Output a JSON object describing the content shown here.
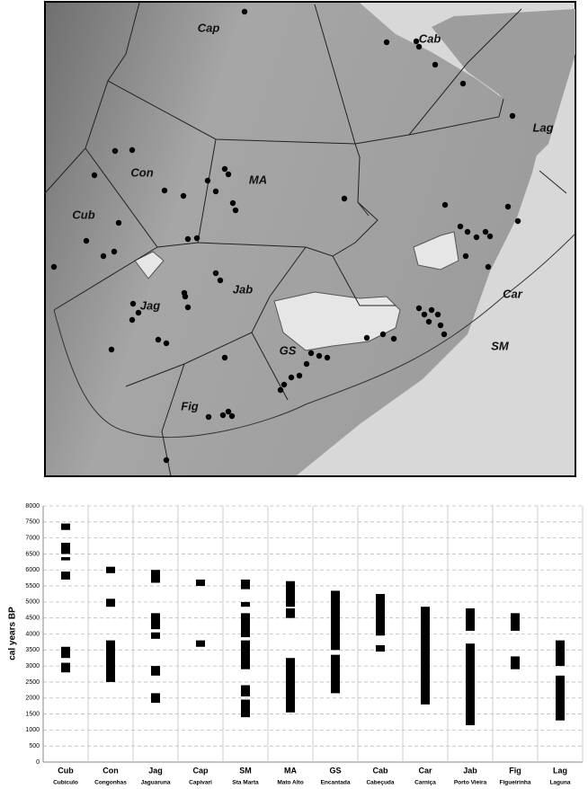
{
  "map": {
    "labels": [
      "Cap",
      "Cab",
      "Lag",
      "Con",
      "MA",
      "Cub",
      "Car",
      "Jab",
      "Jag",
      "GS",
      "SM",
      "Fig"
    ]
  },
  "chart_data": {
    "type": "range-bar",
    "y_label": "cal years BP",
    "categories": [
      "Cub",
      "Con",
      "Jag",
      "Cap",
      "SM",
      "MA",
      "GS",
      "Cab",
      "Car",
      "Jab",
      "Fig",
      "Lag"
    ],
    "category_names": [
      "Cubículo",
      "Congonhas",
      "Jaguaruna",
      "Capivari",
      "Sta Marta",
      "Mato Alto",
      "Encantada",
      "Cabeçuda",
      "Carniça",
      "Porto Vieira",
      "Figueirinha",
      "Laguna"
    ],
    "ranges": [
      [
        [
          7250,
          7450
        ],
        [
          6500,
          6850
        ],
        [
          6300,
          6400
        ],
        [
          5700,
          5950
        ],
        [
          3250,
          3600
        ],
        [
          2800,
          3100
        ]
      ],
      [
        [
          5900,
          6100
        ],
        [
          4850,
          5100
        ],
        [
          2500,
          3800
        ]
      ],
      [
        [
          5600,
          6000
        ],
        [
          4150,
          4650
        ],
        [
          3850,
          4050
        ],
        [
          2700,
          3000
        ],
        [
          1850,
          2150
        ]
      ],
      [
        [
          5500,
          5700
        ],
        [
          3600,
          3800
        ]
      ],
      [
        [
          5400,
          5700
        ],
        [
          4850,
          5000
        ],
        [
          3900,
          4650
        ],
        [
          2900,
          3800
        ],
        [
          2050,
          2400
        ],
        [
          1400,
          1950
        ]
      ],
      [
        [
          4850,
          5650
        ],
        [
          4500,
          4800
        ],
        [
          1550,
          3250
        ]
      ],
      [
        [
          3500,
          5350
        ],
        [
          2150,
          3350
        ]
      ],
      [
        [
          3950,
          5250
        ],
        [
          3450,
          3650
        ]
      ],
      [
        [
          1800,
          4850
        ]
      ],
      [
        [
          4100,
          4800
        ],
        [
          1150,
          3700
        ]
      ],
      [
        [
          4100,
          4650
        ],
        [
          2900,
          3300
        ]
      ],
      [
        [
          3000,
          3800
        ],
        [
          1300,
          2700
        ]
      ]
    ],
    "color": "#000000",
    "ylim": [
      0,
      8000
    ],
    "yticks": [
      0,
      500,
      1000,
      1500,
      2000,
      2500,
      3000,
      3500,
      4000,
      4500,
      5000,
      5500,
      6000,
      6500,
      7000,
      7500,
      8000
    ],
    "grid": true
  }
}
